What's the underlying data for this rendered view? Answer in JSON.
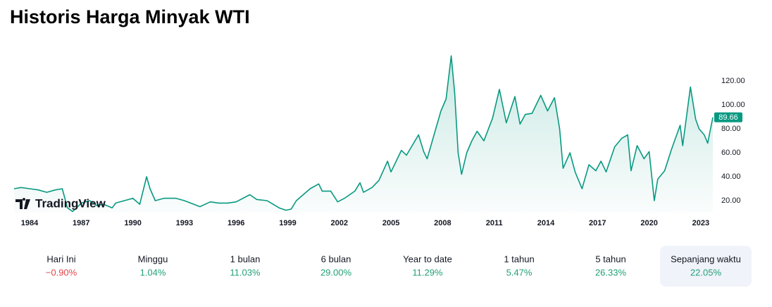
{
  "chart_data": {
    "type": "line",
    "title": "Historis Harga Minyak WTI",
    "x": [
      1983.1,
      1983.5,
      1984,
      1984.5,
      1985,
      1985.5,
      1985.9,
      1986.2,
      1986.5,
      1986.8,
      1987,
      1987.5,
      1987.9,
      1988.3,
      1988.8,
      1989,
      1989.5,
      1990,
      1990.4,
      1990.8,
      1991,
      1991.3,
      1991.8,
      1992.5,
      1993,
      1993.9,
      1994.5,
      1995,
      1995.5,
      1996,
      1996.8,
      1997.2,
      1997.8,
      1998.5,
      1998.9,
      1999.2,
      1999.5,
      1999.9,
      2000.3,
      2000.8,
      2001,
      2001.5,
      2001.9,
      2002.3,
      2002.9,
      2003.2,
      2003.4,
      2003.9,
      2004.3,
      2004.8,
      2005,
      2005.6,
      2005.9,
      2006.6,
      2006.9,
      2007.1,
      2007.5,
      2007.9,
      2008.2,
      2008.5,
      2008.7,
      2008.9,
      2009.1,
      2009.4,
      2009.7,
      2010,
      2010.4,
      2010.9,
      2011.3,
      2011.7,
      2012.2,
      2012.5,
      2012.8,
      2013.2,
      2013.7,
      2014.1,
      2014.5,
      2014.8,
      2015,
      2015.4,
      2015.7,
      2016.1,
      2016.5,
      2016.9,
      2017.2,
      2017.5,
      2018,
      2018.4,
      2018.75,
      2018.95,
      2019.3,
      2019.7,
      2020,
      2020.3,
      2020.5,
      2020.9,
      2021.3,
      2021.8,
      2021.95,
      2022.4,
      2022.7,
      2022.9,
      2023.2,
      2023.4,
      2023.7
    ],
    "values": [
      30,
      31,
      30,
      29,
      27,
      29,
      30,
      14,
      11,
      15,
      18,
      20,
      16,
      17,
      14,
      18,
      20,
      22,
      17,
      40,
      30,
      20,
      22,
      22,
      20,
      15,
      19,
      18,
      18,
      19,
      25,
      21,
      20,
      14,
      12,
      13,
      20,
      25,
      30,
      34,
      28,
      28,
      19,
      22,
      28,
      35,
      27,
      31,
      37,
      53,
      44,
      62,
      58,
      75,
      61,
      55,
      75,
      95,
      105,
      141,
      110,
      60,
      42,
      60,
      70,
      78,
      70,
      89,
      113,
      85,
      107,
      84,
      92,
      93,
      108,
      95,
      106,
      80,
      47,
      60,
      44,
      30,
      50,
      45,
      53,
      44,
      65,
      72,
      75,
      45,
      66,
      55,
      61,
      20,
      38,
      45,
      63,
      83,
      66,
      115,
      88,
      80,
      75,
      68,
      89.66
    ],
    "color": "#089981",
    "xlim": [
      1983.1,
      2023.7
    ],
    "ylim": [
      10,
      145
    ],
    "xticks": [
      1984,
      1987,
      1990,
      1993,
      1996,
      1999,
      2002,
      2005,
      2008,
      2011,
      2014,
      2017,
      2020,
      2023
    ],
    "yticks": [
      {
        "value": 20,
        "label": "20.00"
      },
      {
        "value": 40,
        "label": "40.00"
      },
      {
        "value": 60,
        "label": "60.00"
      },
      {
        "value": 80,
        "label": "80.00"
      },
      {
        "value": 100,
        "label": "100.00"
      },
      {
        "value": 120,
        "label": "120.00"
      }
    ],
    "grid": false,
    "watermark": "TradingView"
  },
  "stats": {
    "selected": 7,
    "positive_color": "#22a079",
    "negative_color": "#e0474c",
    "items": [
      {
        "label": "Hari Ini",
        "value": "−0.90%"
      },
      {
        "label": "Minggu",
        "value": "1.04%"
      },
      {
        "label": "1 bulan",
        "value": "11.03%"
      },
      {
        "label": "6 bulan",
        "value": "29.00%"
      },
      {
        "label": "Year to date",
        "value": "11.29%"
      },
      {
        "label": "1 tahun",
        "value": "5.47%"
      },
      {
        "label": "5 tahun",
        "value": "26.33%"
      },
      {
        "label": "Sepanjang waktu",
        "value": "22.05%"
      }
    ]
  }
}
